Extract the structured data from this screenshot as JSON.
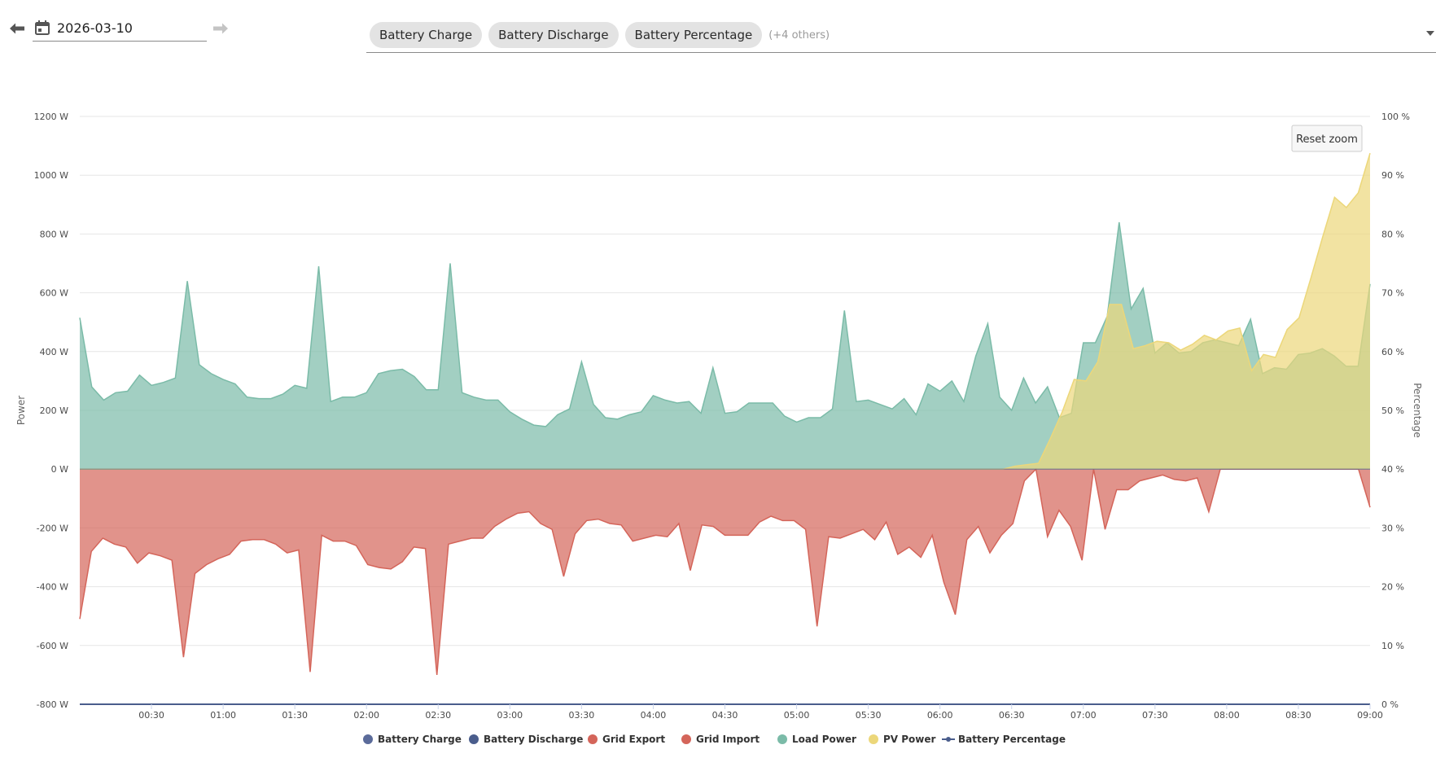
{
  "toolbar": {
    "date_value": "2026-03-10",
    "prev_icon": "arrow-left-icon",
    "next_icon": "arrow-right-icon",
    "calendar_icon": "calendar-icon",
    "chips": [
      "Battery Charge",
      "Battery Discharge",
      "Battery Percentage"
    ],
    "others_label": "(+4 others)",
    "dropdown_icon": "chevron-down-icon"
  },
  "reset_zoom_label": "Reset zoom",
  "chart_data": {
    "type": "area",
    "x_ticks": [
      "00:30",
      "01:00",
      "01:30",
      "02:00",
      "02:30",
      "03:00",
      "03:30",
      "04:00",
      "04:30",
      "05:00",
      "05:30",
      "06:00",
      "06:30",
      "07:00",
      "07:30",
      "08:00",
      "08:30",
      "09:00"
    ],
    "y_left": {
      "title": "Power",
      "unit": "W",
      "ticks": [
        "1200 W",
        "1000 W",
        "800 W",
        "600 W",
        "400 W",
        "200 W",
        "0 W",
        "-200 W",
        "-400 W",
        "-600 W",
        "-800 W"
      ],
      "range": [
        -800,
        1200
      ]
    },
    "y_right": {
      "title": "Percentage",
      "unit": "%",
      "ticks": [
        "100 %",
        "90 %",
        "80 %",
        "70 %",
        "60 %",
        "50 %",
        "40 %",
        "30 %",
        "20 %",
        "10 %",
        "0 %"
      ],
      "range": [
        0,
        100
      ]
    },
    "x_range_minutes": [
      0,
      540
    ],
    "grid": true,
    "legend_position": "bottom",
    "series": [
      {
        "name": "Battery Charge",
        "type": "area",
        "color": "#5b6b9a",
        "values": []
      },
      {
        "name": "Battery Discharge",
        "type": "area",
        "color": "#4a5d8c",
        "values": []
      },
      {
        "name": "Grid Export",
        "type": "area",
        "color": "#d4655a",
        "values": []
      },
      {
        "name": "Grid Import",
        "type": "area",
        "color": "#d4655a",
        "values": [
          -510,
          -280,
          -235,
          -255,
          -265,
          -320,
          -285,
          -295,
          -310,
          -640,
          -355,
          -325,
          -305,
          -290,
          -245,
          -240,
          -240,
          -255,
          -285,
          -275,
          -690,
          -225,
          -245,
          -245,
          -260,
          -325,
          -335,
          -340,
          -315,
          -265,
          -270,
          -700,
          -255,
          -245,
          -235,
          -235,
          -195,
          -170,
          -150,
          -145,
          -185,
          -205,
          -365,
          -220,
          -175,
          -170,
          -185,
          -190,
          -245,
          -235,
          -225,
          -230,
          -185,
          -345,
          -190,
          -195,
          -225,
          -225,
          -225,
          -180,
          -160,
          -175,
          -175,
          -205,
          -535,
          -230,
          -235,
          -220,
          -205,
          -240,
          -180,
          -290,
          -265,
          -300,
          -225,
          -385,
          -495,
          -240,
          -195,
          -285,
          -225,
          -185,
          -40,
          0,
          -230,
          -140,
          -195,
          -310,
          0,
          -205,
          -70,
          -70,
          -40,
          -30,
          -20,
          -35,
          -40,
          -30,
          -145,
          0,
          0,
          0,
          0,
          0,
          0,
          0,
          0,
          0,
          0,
          0,
          0,
          0,
          -130
        ]
      },
      {
        "name": "Load Power",
        "type": "area",
        "color": "#7bbba8",
        "values": [
          515,
          280,
          235,
          260,
          265,
          320,
          285,
          295,
          310,
          640,
          355,
          325,
          305,
          290,
          245,
          240,
          240,
          255,
          285,
          275,
          690,
          230,
          245,
          245,
          260,
          325,
          335,
          340,
          315,
          270,
          270,
          700,
          260,
          245,
          235,
          235,
          195,
          170,
          150,
          145,
          185,
          205,
          365,
          220,
          175,
          170,
          185,
          195,
          250,
          235,
          225,
          230,
          190,
          345,
          190,
          195,
          225,
          225,
          225,
          180,
          160,
          175,
          175,
          205,
          540,
          230,
          235,
          220,
          205,
          240,
          185,
          290,
          265,
          300,
          230,
          385,
          495,
          245,
          200,
          310,
          225,
          280,
          175,
          190,
          430,
          430,
          520,
          840,
          545,
          615,
          395,
          430,
          395,
          400,
          430,
          440,
          430,
          420,
          510,
          325,
          345,
          340,
          390,
          395,
          410,
          385,
          350,
          350,
          630
        ]
      },
      {
        "name": "PV Power",
        "type": "area",
        "color": "#ecd77a",
        "values": [
          0,
          0,
          0,
          0,
          0,
          0,
          0,
          0,
          0,
          0,
          0,
          0,
          0,
          0,
          0,
          0,
          0,
          0,
          0,
          0,
          0,
          0,
          0,
          0,
          0,
          0,
          0,
          0,
          0,
          0,
          0,
          0,
          0,
          0,
          0,
          0,
          0,
          0,
          0,
          0,
          0,
          0,
          0,
          0,
          0,
          0,
          0,
          0,
          0,
          0,
          0,
          0,
          0,
          0,
          0,
          0,
          0,
          0,
          0,
          0,
          0,
          0,
          0,
          0,
          0,
          0,
          0,
          0,
          0,
          0,
          0,
          0,
          0,
          0,
          0,
          0,
          0,
          0,
          0,
          10,
          15,
          20,
          105,
          195,
          305,
          300,
          365,
          560,
          560,
          410,
          420,
          435,
          430,
          405,
          425,
          455,
          440,
          470,
          480,
          335,
          390,
          380,
          475,
          515,
          650,
          790,
          925,
          890,
          940,
          1075
        ]
      },
      {
        "name": "Battery Percentage",
        "type": "line",
        "color": "#4a5d8c",
        "axis": "right",
        "values": []
      }
    ]
  },
  "legend": [
    {
      "label": "Battery Charge",
      "color": "#5b6b9a",
      "symbol": "dot"
    },
    {
      "label": "Battery Discharge",
      "color": "#4a5d8c",
      "symbol": "dot"
    },
    {
      "label": "Grid Export",
      "color": "#d4655a",
      "symbol": "dot"
    },
    {
      "label": "Grid Import",
      "color": "#d4655a",
      "symbol": "dot"
    },
    {
      "label": "Load Power",
      "color": "#7bbba8",
      "symbol": "dot"
    },
    {
      "label": "PV Power",
      "color": "#ecd77a",
      "symbol": "dot"
    },
    {
      "label": "Battery Percentage",
      "color": "#4a5d8c",
      "symbol": "line"
    }
  ]
}
